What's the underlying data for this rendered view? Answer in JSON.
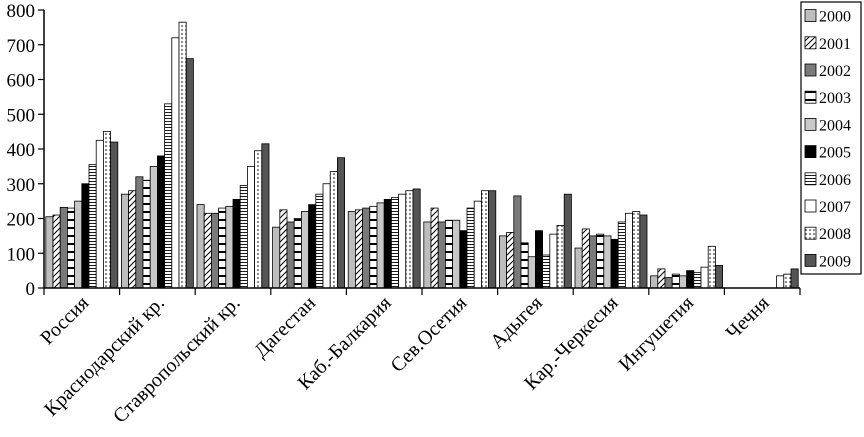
{
  "chart_data": {
    "type": "bar",
    "title": "",
    "xlabel": "",
    "ylabel": "",
    "ylim": [
      0,
      800
    ],
    "yticks": [
      0,
      100,
      200,
      300,
      400,
      500,
      600,
      700,
      800
    ],
    "grid": false,
    "legend_position": "right",
    "categories": [
      "Россия",
      "Краснодарский кр.",
      "Ставропольский кр.",
      "Дагестан",
      "Каб.-Балкария",
      "Сев.Осетия",
      "Адыгея",
      "Кар.-Черкесия",
      "Ингушетия",
      "Чечня"
    ],
    "series": [
      {
        "name": "2000",
        "values": [
          205,
          270,
          240,
          175,
          220,
          190,
          150,
          115,
          35,
          null
        ]
      },
      {
        "name": "2001",
        "values": [
          210,
          280,
          215,
          225,
          225,
          230,
          160,
          170,
          55,
          null
        ]
      },
      {
        "name": "2002",
        "values": [
          232,
          320,
          215,
          190,
          230,
          190,
          265,
          150,
          30,
          null
        ]
      },
      {
        "name": "2003",
        "values": [
          230,
          310,
          230,
          200,
          235,
          195,
          130,
          155,
          40,
          null
        ]
      },
      {
        "name": "2004",
        "values": [
          250,
          350,
          235,
          220,
          245,
          195,
          90,
          150,
          35,
          null
        ]
      },
      {
        "name": "2005",
        "values": [
          300,
          380,
          255,
          240,
          255,
          165,
          165,
          140,
          50,
          null
        ]
      },
      {
        "name": "2006",
        "values": [
          355,
          530,
          295,
          270,
          260,
          230,
          95,
          190,
          45,
          null
        ]
      },
      {
        "name": "2007",
        "values": [
          425,
          720,
          350,
          300,
          270,
          250,
          155,
          215,
          60,
          35
        ]
      },
      {
        "name": "2008",
        "values": [
          450,
          765,
          395,
          335,
          280,
          280,
          180,
          220,
          120,
          40
        ]
      },
      {
        "name": "2009",
        "values": [
          420,
          660,
          415,
          375,
          285,
          280,
          270,
          210,
          65,
          55
        ]
      }
    ],
    "series_styles": [
      {
        "fill": "#bdbdbd",
        "pattern": "none"
      },
      {
        "fill": "#ffffff",
        "pattern": "diag"
      },
      {
        "fill": "#7a7a7a",
        "pattern": "none"
      },
      {
        "fill": "#ffffff",
        "pattern": "hlines-wide"
      },
      {
        "fill": "#c8c8c8",
        "pattern": "none"
      },
      {
        "fill": "#000000",
        "pattern": "none"
      },
      {
        "fill": "#ffffff",
        "pattern": "hlines-dense"
      },
      {
        "fill": "#ffffff",
        "pattern": "none"
      },
      {
        "fill": "#ffffff",
        "pattern": "dots"
      },
      {
        "fill": "#555555",
        "pattern": "none"
      }
    ]
  }
}
